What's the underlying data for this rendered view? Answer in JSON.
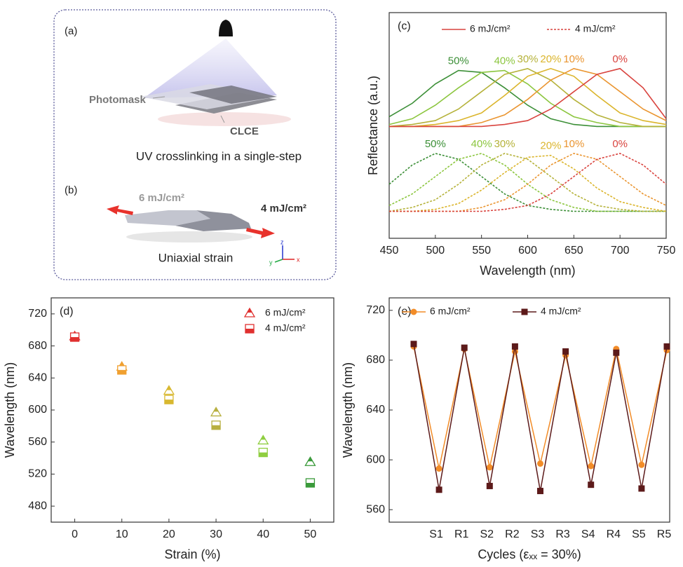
{
  "illustration": {
    "a_label": "(a)",
    "photomask": "Photomask",
    "clce": "CLCE",
    "caption_a": "UV crosslinking in a single-step",
    "b_label": "(b)",
    "dose_high": "6 mJ/cm²",
    "dose_low": "4 mJ/cm²",
    "caption_b": "Uniaxial strain",
    "axis_z": "z",
    "axis_y": "y",
    "axis_x": "x"
  },
  "chart_data": [
    {
      "type": "line",
      "panel_label": "(c)",
      "xlabel": "Wavelength (nm)",
      "ylabel": "Reflectance (a.u.)",
      "x": [
        450,
        475,
        500,
        525,
        550,
        575,
        600,
        625,
        650,
        675,
        700,
        725,
        750
      ],
      "xlim": [
        450,
        750
      ],
      "xticks": [
        450,
        500,
        550,
        600,
        650,
        700,
        750
      ],
      "ylim": [
        0,
        11.7
      ],
      "legend_loc": "upper center",
      "legend": [
        {
          "name": "6 mJ/cm²",
          "color": "#d9443f",
          "dashed": false
        },
        {
          "name": "4 mJ/cm²",
          "color": "#d9443f",
          "dashed": true
        }
      ],
      "series": [
        {
          "label": "50%",
          "color": "#3c8f37",
          "dashed": false,
          "values": [
            6.3,
            7.0,
            8.0,
            8.7,
            8.6,
            7.8,
            6.9,
            6.2,
            5.9,
            5.8,
            5.8,
            5.8,
            5.8
          ]
        },
        {
          "label": "40%",
          "color": "#8cc63f",
          "dashed": false,
          "values": [
            5.9,
            6.2,
            6.9,
            7.8,
            8.6,
            8.7,
            8.0,
            7.0,
            6.3,
            6.0,
            5.8,
            5.8,
            5.8
          ]
        },
        {
          "label": "30%",
          "color": "#b5b23a",
          "dashed": false,
          "values": [
            5.8,
            5.9,
            6.1,
            6.7,
            7.6,
            8.5,
            8.8,
            8.2,
            7.2,
            6.4,
            6.0,
            5.8,
            5.8
          ]
        },
        {
          "label": "20%",
          "color": "#dbb52c",
          "dashed": false,
          "values": [
            5.8,
            5.8,
            5.9,
            6.1,
            6.5,
            7.4,
            8.4,
            8.8,
            8.4,
            7.4,
            6.5,
            6.1,
            5.9
          ]
        },
        {
          "label": "10%",
          "color": "#ea9530",
          "dashed": false,
          "values": [
            5.8,
            5.8,
            5.8,
            5.8,
            6.0,
            6.4,
            7.2,
            8.2,
            8.8,
            8.5,
            7.6,
            6.7,
            6.1
          ]
        },
        {
          "label": "0%",
          "color": "#d9443f",
          "dashed": false,
          "values": [
            5.8,
            5.8,
            5.8,
            5.8,
            5.8,
            5.9,
            6.1,
            6.7,
            7.6,
            8.5,
            8.8,
            7.8,
            6.2
          ]
        },
        {
          "label": "50%",
          "color": "#3c8f37",
          "dashed": true,
          "values": [
            2.8,
            3.8,
            4.4,
            4.1,
            3.2,
            2.3,
            1.7,
            1.5,
            1.4,
            1.4,
            1.4,
            1.4,
            1.4
          ]
        },
        {
          "label": "40%",
          "color": "#8cc63f",
          "dashed": true,
          "values": [
            1.7,
            2.3,
            3.2,
            4.1,
            4.4,
            3.8,
            2.8,
            2.0,
            1.6,
            1.4,
            1.4,
            1.4,
            1.4
          ]
        },
        {
          "label": "30%",
          "color": "#b5b23a",
          "dashed": true,
          "values": [
            1.4,
            1.6,
            2.0,
            2.8,
            3.8,
            4.4,
            4.1,
            3.2,
            2.3,
            1.7,
            1.5,
            1.4,
            1.4
          ]
        },
        {
          "label": "20%",
          "color": "#dbb52c",
          "dashed": true,
          "values": [
            1.4,
            1.4,
            1.5,
            1.8,
            2.5,
            3.4,
            4.2,
            4.3,
            3.6,
            2.6,
            1.9,
            1.6,
            1.4
          ]
        },
        {
          "label": "10%",
          "color": "#ea9530",
          "dashed": true,
          "values": [
            1.4,
            1.4,
            1.4,
            1.4,
            1.6,
            2.0,
            2.8,
            3.8,
            4.4,
            4.1,
            3.2,
            2.3,
            1.7
          ]
        },
        {
          "label": "0%",
          "color": "#d9443f",
          "dashed": true,
          "values": [
            1.4,
            1.4,
            1.4,
            1.4,
            1.4,
            1.5,
            1.7,
            2.3,
            3.2,
            4.1,
            4.4,
            3.8,
            2.8
          ]
        }
      ]
    },
    {
      "type": "scatter",
      "panel_label": "(d)",
      "xlabel": "Strain (%)",
      "ylabel": "Wavelength (nm)",
      "xlim": [
        -5,
        55
      ],
      "xticks": [
        0,
        10,
        20,
        30,
        40,
        50
      ],
      "ylim": [
        460,
        740
      ],
      "yticks": [
        480,
        520,
        560,
        600,
        640,
        680,
        720
      ],
      "legend_loc": "upper right",
      "series": [
        {
          "name": "6 mJ/cm²",
          "marker": "half-triangle",
          "color": "#e0302f",
          "x": [
            0,
            10,
            20,
            30,
            40,
            50
          ],
          "values": [
            692,
            654,
            624,
            597,
            562,
            535
          ],
          "point_colors": [
            "#e0302f",
            "#f0a030",
            "#d8b830",
            "#b8b040",
            "#8fce40",
            "#3a9a3a"
          ]
        },
        {
          "name": "4 mJ/cm²",
          "marker": "half-square",
          "color": "#e0302f",
          "x": [
            0,
            10,
            20,
            30,
            40,
            50
          ],
          "values": [
            691,
            650,
            613,
            581,
            547,
            509
          ],
          "point_colors": [
            "#e0302f",
            "#f0a030",
            "#d8b830",
            "#b8b040",
            "#8fce40",
            "#3a9a3a"
          ]
        }
      ]
    },
    {
      "type": "line",
      "panel_label": "(e)",
      "xlabel": "Cycles (εₓₓ = 30%)",
      "ylabel": "Wavelength (nm)",
      "categories": [
        null,
        "S1",
        "R1",
        "S2",
        "R2",
        "S3",
        "R3",
        "S4",
        "R4",
        "S5",
        "R5"
      ],
      "ylim": [
        550,
        730
      ],
      "yticks": [
        560,
        600,
        640,
        680,
        720
      ],
      "legend_loc": "upper left",
      "series": [
        {
          "name": "6 mJ/cm²",
          "color": "#f28c28",
          "marker": "circle",
          "values": [
            691,
            593,
            689,
            594,
            687,
            597,
            684,
            595,
            689,
            596,
            688
          ]
        },
        {
          "name": "4 mJ/cm²",
          "color": "#5c1a1a",
          "marker": "square",
          "values": [
            693,
            576,
            690,
            579,
            691,
            575,
            687,
            580,
            686,
            577,
            691
          ]
        }
      ]
    }
  ]
}
